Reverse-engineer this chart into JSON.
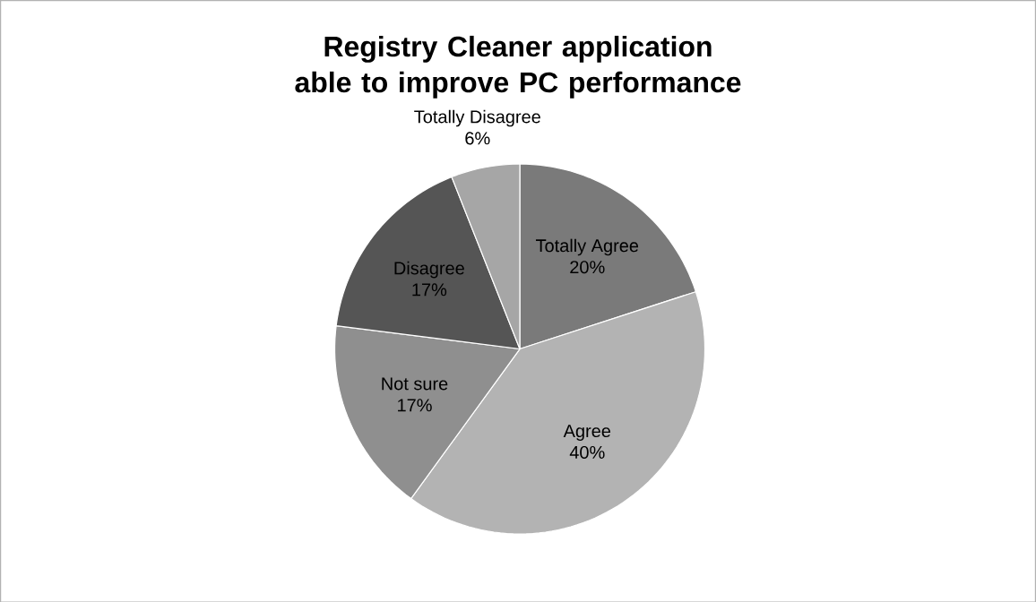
{
  "chart_data": {
    "type": "pie",
    "title": "Registry Cleaner application able to improve PC performance",
    "categories": [
      "Totally Agree",
      "Agree",
      "Not sure",
      "Disagree",
      "Totally Disagree"
    ],
    "values": [
      20,
      40,
      17,
      17,
      6
    ],
    "value_labels": [
      "20%",
      "40%",
      "17%",
      "17%",
      "6%"
    ],
    "colors": [
      "#7a7a7a",
      "#b3b3b3",
      "#8f8f8f",
      "#555555",
      "#a6a6a6"
    ]
  }
}
